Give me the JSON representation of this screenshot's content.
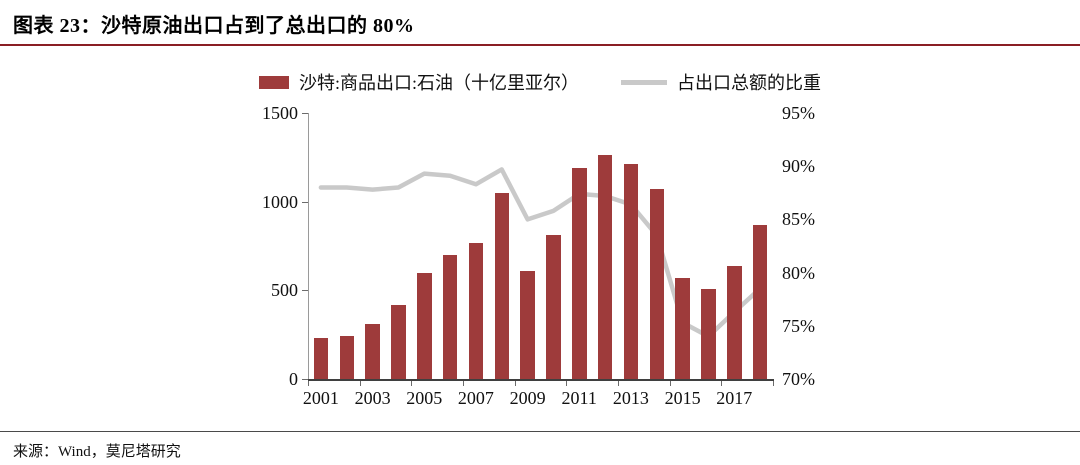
{
  "header": {
    "title": "图表 23：沙特原油出口占到了总出口的 80%"
  },
  "footer": {
    "source": "来源：Wind，莫尼塔研究"
  },
  "colors": {
    "bar": "#9E3B3B",
    "line": "#C9C9C9",
    "rule": "#8A1E24",
    "axis": "#3F3F3F"
  },
  "chart_data": {
    "type": "bar+line",
    "title": "图表 23：沙特原油出口占到了总出口的 80%",
    "categories": [
      "2001",
      "2002",
      "2003",
      "2004",
      "2005",
      "2006",
      "2007",
      "2008",
      "2009",
      "2010",
      "2011",
      "2012",
      "2013",
      "2014",
      "2015",
      "2016",
      "2017",
      "2018"
    ],
    "series": [
      {
        "name": "沙特:商品出口:石油（十亿里亚尔）",
        "type": "bar",
        "axis": "left",
        "values": [
          230,
          240,
          310,
          420,
          600,
          700,
          770,
          1050,
          610,
          810,
          1190,
          1265,
          1210,
          1070,
          570,
          510,
          640,
          870
        ]
      },
      {
        "name": "占出口总额的比重",
        "type": "line",
        "axis": "right",
        "values": [
          88.0,
          88.0,
          87.8,
          88.0,
          89.3,
          89.1,
          88.3,
          89.7,
          85.0,
          85.8,
          87.4,
          87.2,
          86.4,
          83.5,
          75.3,
          74.0,
          76.3,
          78.5
        ]
      }
    ],
    "left_axis": {
      "min": 0,
      "max": 1500,
      "ticks": [
        0,
        500,
        1000,
        1500
      ]
    },
    "right_axis": {
      "min": 70,
      "max": 95,
      "ticks": [
        70,
        75,
        80,
        85,
        90,
        95
      ],
      "suffix": "%"
    },
    "x_label_step": 2,
    "legend_position": "top-center",
    "grid": false
  }
}
